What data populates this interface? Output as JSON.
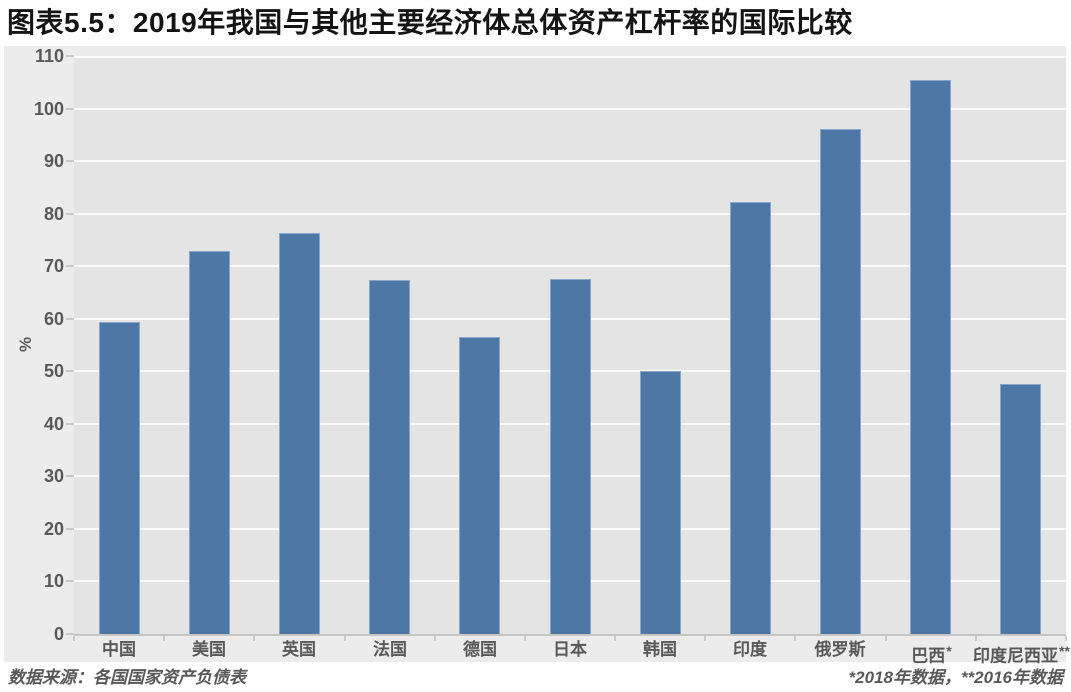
{
  "chart_data": {
    "type": "bar",
    "title": "图表5.5：2019年我国与其他主要经济体总体资产杠杆率的国际比较",
    "categories": [
      "中国",
      "美国",
      "英国",
      "法国",
      "德国",
      "日本",
      "韩国",
      "印度",
      "俄罗斯",
      "巴西",
      "印度尼西亚"
    ],
    "category_markers": [
      "",
      "",
      "",
      "",
      "",
      "",
      "",
      "",
      "",
      "*",
      "**"
    ],
    "values": [
      59.3,
      72.8,
      76.3,
      67.3,
      56.6,
      67.5,
      50.0,
      82.3,
      96.2,
      105.4,
      47.6
    ],
    "xlabel": "",
    "ylabel": "%",
    "ylim": [
      0,
      110
    ],
    "ytick_step": 10,
    "grid": true,
    "legend": "none",
    "colors": {
      "bar_fill": "#4d78a6",
      "bar_border": "#8aa6c8",
      "plot_background": "#e4e4e5",
      "canvas_background": "#ececec",
      "grid_line": "#fafafa",
      "axis_line": "#c6c6c6",
      "tick_text": "#595959",
      "title_text": "#141414"
    }
  },
  "footer": {
    "source": "数据来源：各国国家资产负债表",
    "note": "*2018年数据，**2016年数据"
  }
}
